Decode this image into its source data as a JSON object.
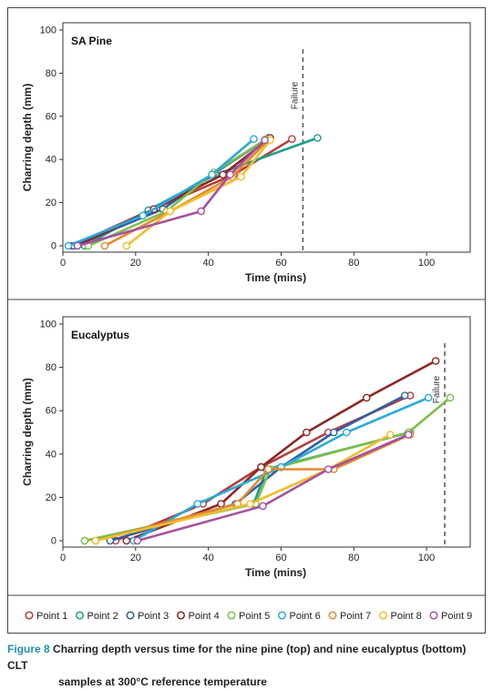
{
  "chart_data": [
    {
      "type": "line",
      "title": "SA Pine",
      "xlabel": "Time (mins)",
      "ylabel": "Charring depth (mm)",
      "xlim": [
        0,
        112
      ],
      "ylim": [
        0,
        100
      ],
      "xticks": [
        0,
        20,
        40,
        60,
        80,
        100
      ],
      "yticks": [
        0,
        20,
        40,
        60,
        80,
        100
      ],
      "annotation": {
        "text": "Failure",
        "x": 66
      },
      "series": [
        {
          "name": "Point 1",
          "points": [
            [
              2.5,
              0
            ],
            [
              24,
              16.5
            ],
            [
              47,
              33
            ],
            [
              63,
              49.5
            ]
          ]
        },
        {
          "name": "Point 2",
          "points": [
            [
              6,
              0
            ],
            [
              23.5,
              16.5
            ],
            [
              42,
              33
            ],
            [
              70,
              50
            ]
          ]
        },
        {
          "name": "Point 3",
          "points": [
            [
              3,
              0
            ],
            [
              27.5,
              17
            ],
            [
              41.5,
              33.5
            ],
            [
              56.5,
              50
            ]
          ]
        },
        {
          "name": "Point 4",
          "points": [
            [
              4,
              0
            ],
            [
              25,
              17
            ],
            [
              44,
              33
            ],
            [
              57,
              50
            ]
          ]
        },
        {
          "name": "Point 5",
          "points": [
            [
              7,
              0
            ],
            [
              28.5,
              16
            ],
            [
              41.5,
              34
            ],
            [
              56,
              49.5
            ]
          ]
        },
        {
          "name": "Point 6",
          "points": [
            [
              1.5,
              0
            ],
            [
              22,
              14
            ],
            [
              41,
              33
            ],
            [
              52.5,
              49.5
            ]
          ]
        },
        {
          "name": "Point 7",
          "points": [
            [
              11.5,
              0
            ],
            [
              29.5,
              16
            ],
            [
              46.5,
              32
            ],
            [
              56.5,
              49
            ]
          ]
        },
        {
          "name": "Point 8",
          "points": [
            [
              17.5,
              0
            ],
            [
              29.5,
              16
            ],
            [
              49,
              32
            ],
            [
              57,
              49
            ]
          ]
        },
        {
          "name": "Point 9",
          "points": [
            [
              4,
              0
            ],
            [
              38,
              16
            ],
            [
              46,
              33
            ],
            [
              55.5,
              49
            ]
          ]
        }
      ]
    },
    {
      "type": "line",
      "title": "Eucalyptus",
      "xlabel": "Time (mins)",
      "ylabel": "Charring depth (mm)",
      "xlim": [
        0,
        112
      ],
      "ylim": [
        0,
        100
      ],
      "xticks": [
        0,
        20,
        40,
        60,
        80,
        100
      ],
      "yticks": [
        0,
        20,
        40,
        60,
        80,
        100
      ],
      "annotation": {
        "text": "Failure",
        "x": 105
      },
      "series": [
        {
          "name": "Point 1",
          "points": [
            [
              14.5,
              0
            ],
            [
              38.5,
              17
            ],
            [
              54.5,
              34
            ],
            [
              73,
              50
            ],
            [
              95.5,
              67
            ]
          ]
        },
        {
          "name": "Point 2",
          "points": [
            [
              6,
              0
            ],
            [
              52.5,
              17
            ],
            [
              56,
              33
            ],
            [
              95.5,
              50
            ]
          ]
        },
        {
          "name": "Point 3",
          "points": [
            [
              13,
              0
            ],
            [
              47.5,
              17
            ],
            [
              60,
              34
            ],
            [
              74.5,
              50
            ],
            [
              94,
              67
            ]
          ]
        },
        {
          "name": "Point 4",
          "points": [
            [
              17.5,
              0
            ],
            [
              43.5,
              17
            ],
            [
              54.5,
              34
            ],
            [
              67,
              50
            ],
            [
              83.5,
              66
            ],
            [
              102.5,
              83
            ]
          ]
        },
        {
          "name": "Point 5",
          "points": [
            [
              6,
              0
            ],
            [
              53,
              17
            ],
            [
              57,
              33
            ],
            [
              95,
              50
            ],
            [
              106.5,
              66
            ]
          ]
        },
        {
          "name": "Point 6",
          "points": [
            [
              19.5,
              0
            ],
            [
              37,
              17
            ],
            [
              60,
              34
            ],
            [
              78,
              50
            ],
            [
              100.5,
              66
            ]
          ]
        },
        {
          "name": "Point 7",
          "points": [
            [
              9,
              0
            ],
            [
              48,
              17
            ],
            [
              56.5,
              33
            ],
            [
              74.5,
              33
            ],
            [
              95.5,
              49
            ]
          ]
        },
        {
          "name": "Point 8",
          "points": [
            [
              9,
              0
            ],
            [
              51.5,
              17
            ],
            [
              73,
              33
            ],
            [
              90,
              49
            ]
          ]
        },
        {
          "name": "Point 9",
          "points": [
            [
              20.5,
              0
            ],
            [
              55,
              16
            ],
            [
              73,
              33
            ],
            [
              95,
              49
            ]
          ]
        }
      ]
    }
  ],
  "legend": [
    {
      "label": "Point 1",
      "color": "#b83b3b"
    },
    {
      "label": "Point 2",
      "color": "#1e9e8a"
    },
    {
      "label": "Point 3",
      "color": "#2f5fa4"
    },
    {
      "label": "Point 4",
      "color": "#8e2525"
    },
    {
      "label": "Point 5",
      "color": "#7dbf4a"
    },
    {
      "label": "Point 6",
      "color": "#28a9dc"
    },
    {
      "label": "Point 7",
      "color": "#e3892d"
    },
    {
      "label": "Point 8",
      "color": "#f2be2c"
    },
    {
      "label": "Point 9",
      "color": "#a5519f"
    }
  ],
  "caption": {
    "label": "Figure 8",
    "line1": "Charring depth versus time for the nine pine (top) and nine eucalyptus (bottom) CLT",
    "line2": "samples at 300°C reference temperature"
  }
}
